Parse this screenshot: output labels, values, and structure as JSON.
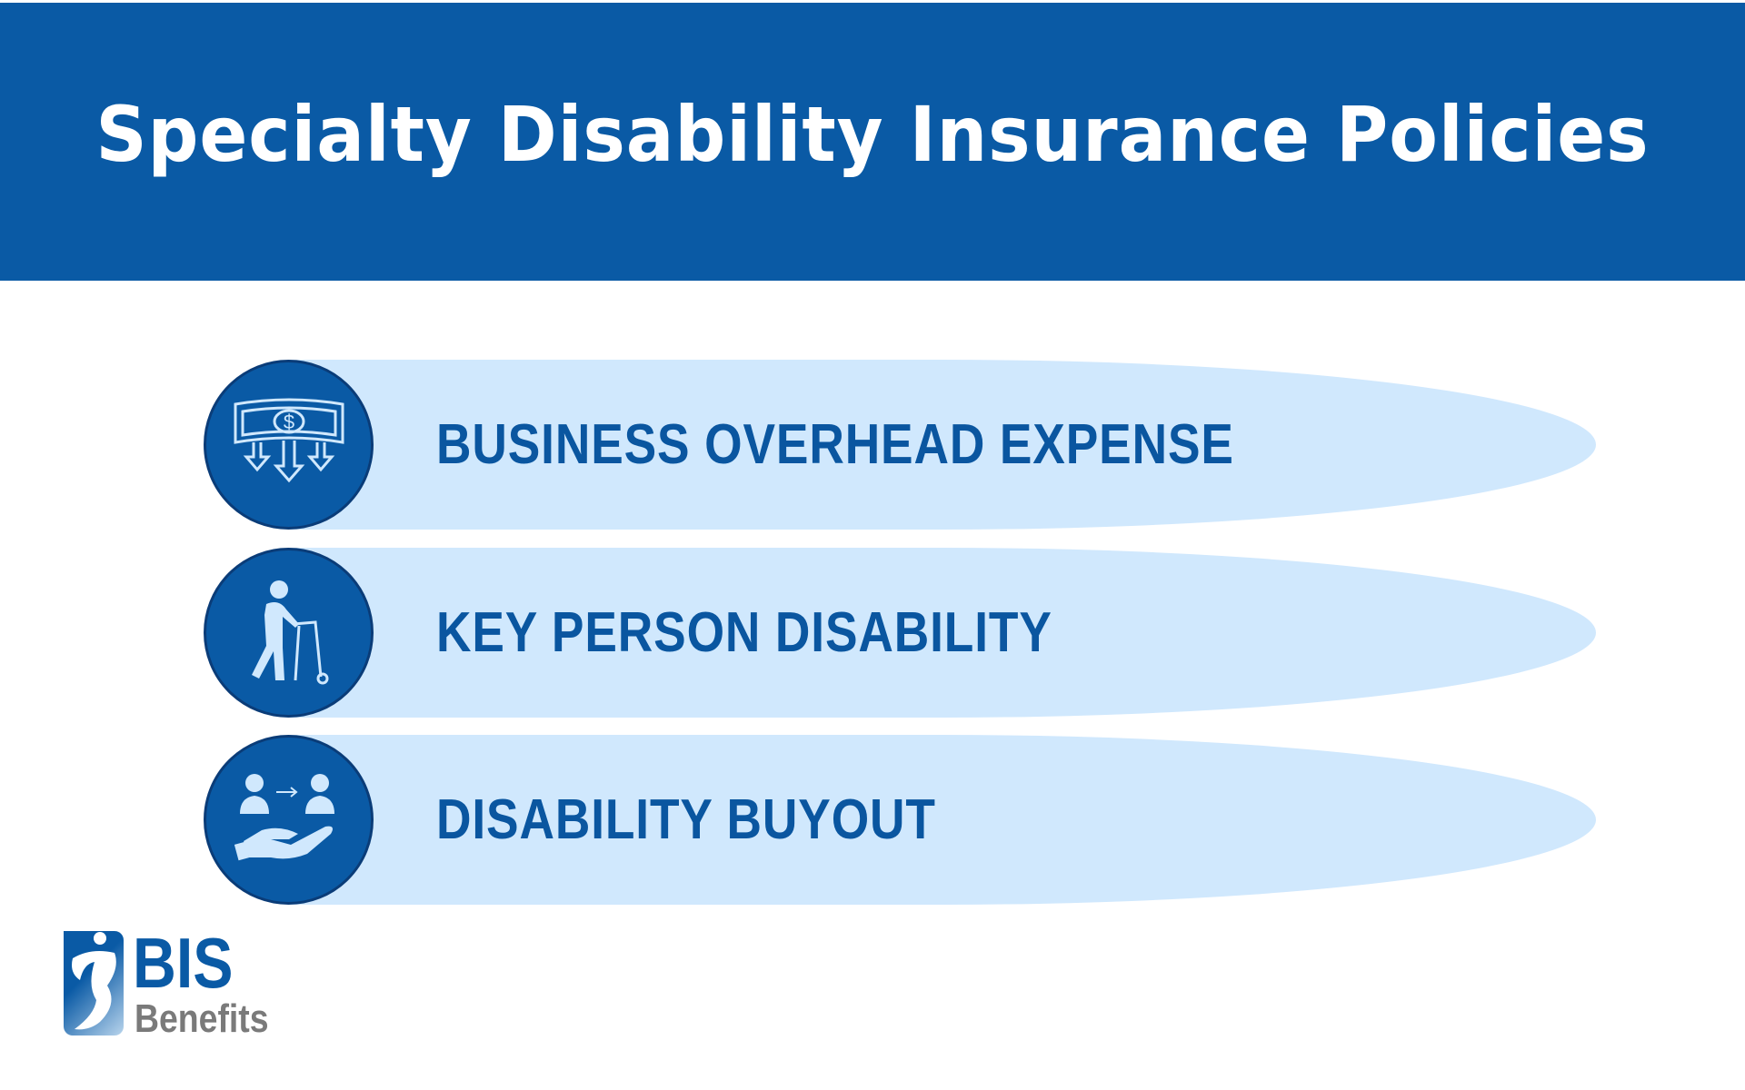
{
  "header": {
    "title": "Specialty Disability Insurance Policies"
  },
  "items": [
    {
      "label": "BUSINESS OVERHEAD EXPENSE",
      "icon": "money-down-arrows-icon"
    },
    {
      "label": "KEY PERSON DISABILITY",
      "icon": "person-walker-icon"
    },
    {
      "label": "DISABILITY BUYOUT",
      "icon": "people-transfer-hand-icon"
    }
  ],
  "logo": {
    "line1": "BIS",
    "line2": "Benefits"
  },
  "colors": {
    "primary": "#0a5aa5",
    "pill": "#d0e8fd",
    "circle_border": "#0a3c78",
    "logo_gray": "#7a7a7a"
  }
}
